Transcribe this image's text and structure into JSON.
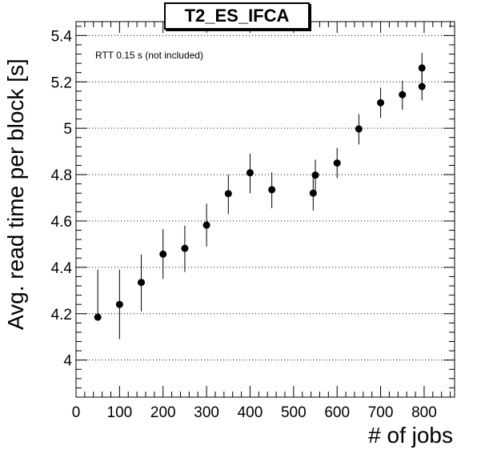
{
  "chart_data": {
    "type": "scatter",
    "title": "T2_ES_IFCA",
    "annotation": "RTT 0.15 s (not included)",
    "xlabel": "# of jobs",
    "ylabel": "Avg. read time per block [s]",
    "xlim": [
      0,
      870
    ],
    "ylim": [
      3.84,
      5.46
    ],
    "x_ticks": [
      0,
      100,
      200,
      300,
      400,
      500,
      600,
      700,
      800
    ],
    "y_ticks": [
      4.0,
      4.2,
      4.4,
      4.6,
      4.8,
      5.0,
      5.2,
      5.4
    ],
    "y_tick_labels": [
      "4",
      "4.2",
      "4.4",
      "4.6",
      "4.8",
      "5",
      "5.2",
      "5.4"
    ],
    "grid": "horizontal dotted",
    "points": [
      {
        "x": 50,
        "y": 4.185,
        "err_low": 4.18,
        "err_high": 4.39
      },
      {
        "x": 100,
        "y": 4.24,
        "err_low": 4.09,
        "err_high": 4.39
      },
      {
        "x": 150,
        "y": 4.335,
        "err_low": 4.21,
        "err_high": 4.455
      },
      {
        "x": 200,
        "y": 4.457,
        "err_low": 4.35,
        "err_high": 4.565
      },
      {
        "x": 250,
        "y": 4.482,
        "err_low": 4.38,
        "err_high": 4.58
      },
      {
        "x": 300,
        "y": 4.582,
        "err_low": 4.49,
        "err_high": 4.675
      },
      {
        "x": 350,
        "y": 4.718,
        "err_low": 4.63,
        "err_high": 4.8
      },
      {
        "x": 400,
        "y": 4.808,
        "err_low": 4.72,
        "err_high": 4.89
      },
      {
        "x": 450,
        "y": 4.735,
        "err_low": 4.655,
        "err_high": 4.81
      },
      {
        "x": 545,
        "y": 4.72,
        "err_low": 4.645,
        "err_high": 4.795
      },
      {
        "x": 550,
        "y": 4.798,
        "err_low": 4.725,
        "err_high": 4.865
      },
      {
        "x": 600,
        "y": 4.85,
        "err_low": 4.785,
        "err_high": 4.915
      },
      {
        "x": 650,
        "y": 4.997,
        "err_low": 4.93,
        "err_high": 5.06
      },
      {
        "x": 700,
        "y": 5.11,
        "err_low": 5.045,
        "err_high": 5.175
      },
      {
        "x": 750,
        "y": 5.145,
        "err_low": 5.08,
        "err_high": 5.205
      },
      {
        "x": 795,
        "y": 5.26,
        "err_low": 5.19,
        "err_high": 5.325
      },
      {
        "x": 795,
        "y": 5.18,
        "err_low": 5.12,
        "err_high": 5.245
      }
    ],
    "colors": {
      "marker": "#000000",
      "grid": "#000000",
      "frame": "#000000"
    }
  }
}
